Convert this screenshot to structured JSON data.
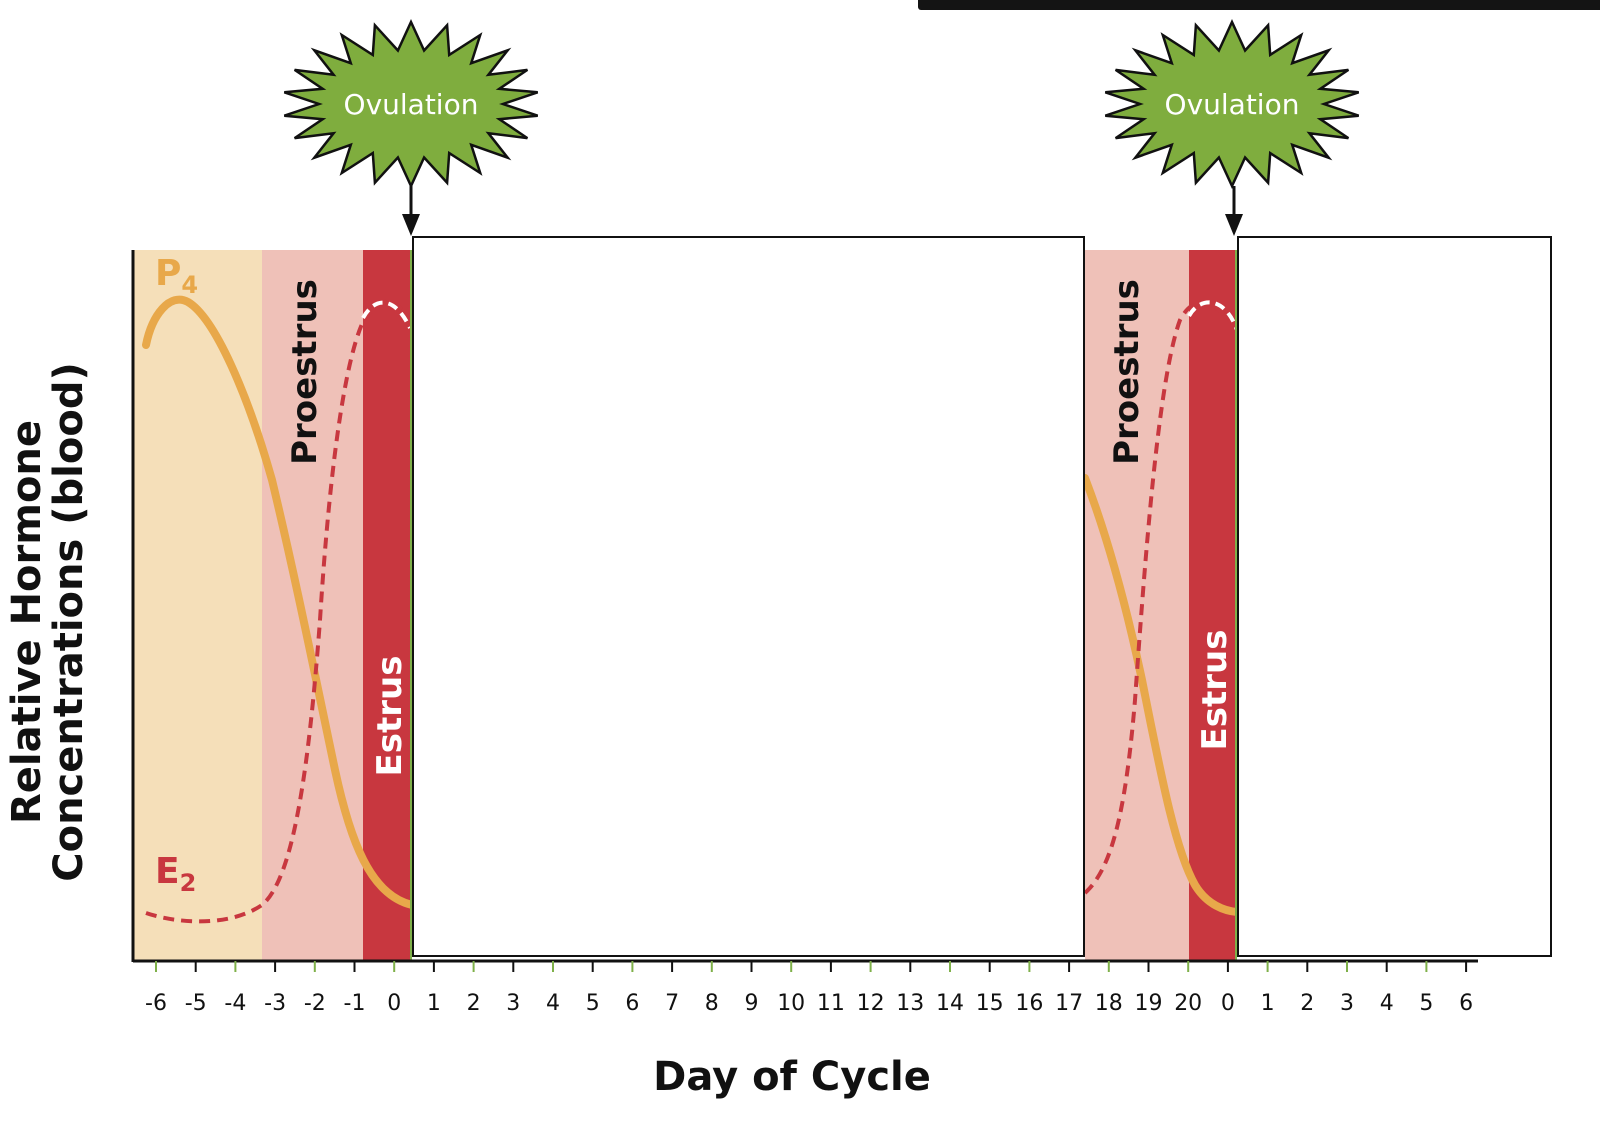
{
  "diagram": {
    "y_axis_title_line1": "Relative Hormone",
    "y_axis_title_line2": "Concentrations (blood)",
    "x_axis_title": "Day of Cycle",
    "ovulation_label": "Ovulation",
    "proestrus_label": "Proestrus",
    "estrus_label": "Estrus",
    "p4_label": "P",
    "p4_sub": "4",
    "e2_label": "E",
    "e2_sub": "2",
    "x_ticks": [
      "-6",
      "-5",
      "-4",
      "-3",
      "-2",
      "-1",
      "0",
      "1",
      "2",
      "3",
      "4",
      "5",
      "6",
      "7",
      "8",
      "9",
      "10",
      "11",
      "12",
      "13",
      "14",
      "15",
      "16",
      "17",
      "18",
      "19",
      "20",
      "0",
      "1",
      "2",
      "3",
      "4",
      "5",
      "6"
    ],
    "colors": {
      "diestrus_bg": "#f5dfb9",
      "proestrus_bg": "#efc1b8",
      "estrus_band": "#c8373f",
      "p4_line": "#e8a84a",
      "e2_line": "#c8373f",
      "ovulation_fill": "#7fad3e",
      "axis_tick_green": "#7fb04a"
    }
  }
}
